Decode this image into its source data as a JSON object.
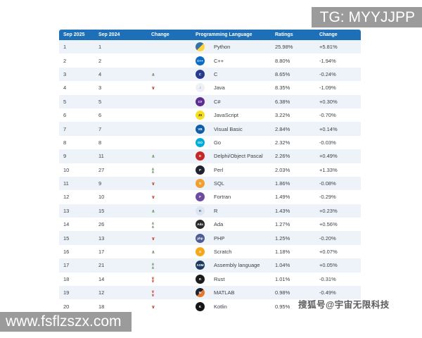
{
  "overlays": {
    "tg_watermark": "TG: MYYJJPP",
    "url_watermark": "www.fsflzszx.com",
    "sohu_watermark": "搜狐号@宇宙无限科技"
  },
  "colors": {
    "header_bg": "#1d6fb8",
    "row_alt_bg": "#eef3fa",
    "row_bg": "#ffffff",
    "up_arrow": "#6f9c6d",
    "down_arrow": "#c64a35",
    "watermark_bg": "#9b9b9b"
  },
  "table": {
    "headers": [
      "Sep 2025",
      "Sep 2024",
      "Change",
      "Programming Language",
      "Ratings",
      "Change"
    ],
    "rows": [
      {
        "rank": "1",
        "prev": "1",
        "move": "",
        "lang": "Python",
        "rating": "25.98%",
        "delta": "+5.81%",
        "icon": {
          "label": "",
          "bg": "#3572a5",
          "bg2": "#ffd43b",
          "fg": "#ffffff"
        }
      },
      {
        "rank": "2",
        "prev": "2",
        "move": "",
        "lang": "C++",
        "rating": "8.80%",
        "delta": "-1.94%",
        "icon": {
          "label": "C++",
          "bg": "#0a6cc4",
          "fg": "#ffffff"
        }
      },
      {
        "rank": "3",
        "prev": "4",
        "move": "up",
        "lang": "C",
        "rating": "8.65%",
        "delta": "-0.24%",
        "icon": {
          "label": "C",
          "bg": "#283a8f",
          "fg": "#ffffff"
        }
      },
      {
        "rank": "4",
        "prev": "3",
        "move": "down",
        "lang": "Java",
        "rating": "8.35%",
        "delta": "-1.09%",
        "icon": {
          "label": "J",
          "bg": "#edf0f5",
          "fg": "#a8b2c1"
        }
      },
      {
        "rank": "5",
        "prev": "5",
        "move": "",
        "lang": "C#",
        "rating": "6.38%",
        "delta": "+0.30%",
        "icon": {
          "label": "C#",
          "bg": "#5c2d91",
          "fg": "#ffffff"
        }
      },
      {
        "rank": "6",
        "prev": "6",
        "move": "",
        "lang": "JavaScript",
        "rating": "3.22%",
        "delta": "-0.70%",
        "icon": {
          "label": "JS",
          "bg": "#f7df1e",
          "fg": "#222222"
        }
      },
      {
        "rank": "7",
        "prev": "7",
        "move": "",
        "lang": "Visual Basic",
        "rating": "2.84%",
        "delta": "+0.14%",
        "icon": {
          "label": "VB",
          "bg": "#0f5da8",
          "fg": "#ffffff"
        }
      },
      {
        "rank": "8",
        "prev": "8",
        "move": "",
        "lang": "Go",
        "rating": "2.32%",
        "delta": "-0.03%",
        "icon": {
          "label": "GO",
          "bg": "#00acd7",
          "fg": "#ffffff"
        }
      },
      {
        "rank": "9",
        "prev": "11",
        "move": "up",
        "lang": "Delphi/Object Pascal",
        "rating": "2.26%",
        "delta": "+0.49%",
        "icon": {
          "label": "D",
          "bg": "#c62828",
          "fg": "#ffffff"
        }
      },
      {
        "rank": "10",
        "prev": "27",
        "move": "up2",
        "lang": "Perl",
        "rating": "2.03%",
        "delta": "+1.33%",
        "icon": {
          "label": "P",
          "bg": "#1f2430",
          "fg": "#ffffff"
        }
      },
      {
        "rank": "11",
        "prev": "9",
        "move": "down",
        "lang": "SQL",
        "rating": "1.86%",
        "delta": "-0.08%",
        "icon": {
          "label": "S",
          "bg": "#f0a030",
          "fg": "#ffffff"
        }
      },
      {
        "rank": "12",
        "prev": "10",
        "move": "down",
        "lang": "Fortran",
        "rating": "1.49%",
        "delta": "-0.29%",
        "icon": {
          "label": "F",
          "bg": "#6d4c9f",
          "fg": "#ffffff"
        }
      },
      {
        "rank": "13",
        "prev": "15",
        "move": "up",
        "lang": "R",
        "rating": "1.43%",
        "delta": "+0.23%",
        "icon": {
          "label": "R",
          "bg": "#dfe6ee",
          "fg": "#276dc3"
        }
      },
      {
        "rank": "14",
        "prev": "26",
        "move": "up2",
        "lang": "Ada",
        "rating": "1.27%",
        "delta": "+0.56%",
        "icon": {
          "label": "Ada",
          "bg": "#2a2a2a",
          "fg": "#ffffff"
        }
      },
      {
        "rank": "15",
        "prev": "13",
        "move": "down",
        "lang": "PHP",
        "rating": "1.25%",
        "delta": "-0.20%",
        "icon": {
          "label": "php",
          "bg": "#4f5b93",
          "fg": "#ffffff"
        }
      },
      {
        "rank": "16",
        "prev": "17",
        "move": "up",
        "lang": "Scratch",
        "rating": "1.18%",
        "delta": "+0.07%",
        "icon": {
          "label": "S",
          "bg": "#f6a81c",
          "fg": "#ffffff"
        }
      },
      {
        "rank": "17",
        "prev": "21",
        "move": "up2",
        "lang": "Assembly language",
        "rating": "1.04%",
        "delta": "+0.05%",
        "icon": {
          "label": "ASM",
          "bg": "#1c3a5e",
          "fg": "#ffffff"
        }
      },
      {
        "rank": "18",
        "prev": "14",
        "move": "down2",
        "lang": "Rust",
        "rating": "1.01%",
        "delta": "-0.31%",
        "icon": {
          "label": "R",
          "bg": "#1b1b1b",
          "fg": "#ffffff"
        }
      },
      {
        "rank": "19",
        "prev": "12",
        "move": "down2",
        "lang": "MATLAB",
        "rating": "0.98%",
        "delta": "-0.49%",
        "icon": {
          "label": "M",
          "bg": "#20242c",
          "bg2": "#e8762d",
          "fg": "#ffffff"
        }
      },
      {
        "rank": "20",
        "prev": "18",
        "move": "down",
        "lang": "Kotlin",
        "rating": "0.95%",
        "delta": "",
        "icon": {
          "label": "K",
          "bg": "#151515",
          "fg": "#ffffff"
        }
      }
    ]
  }
}
